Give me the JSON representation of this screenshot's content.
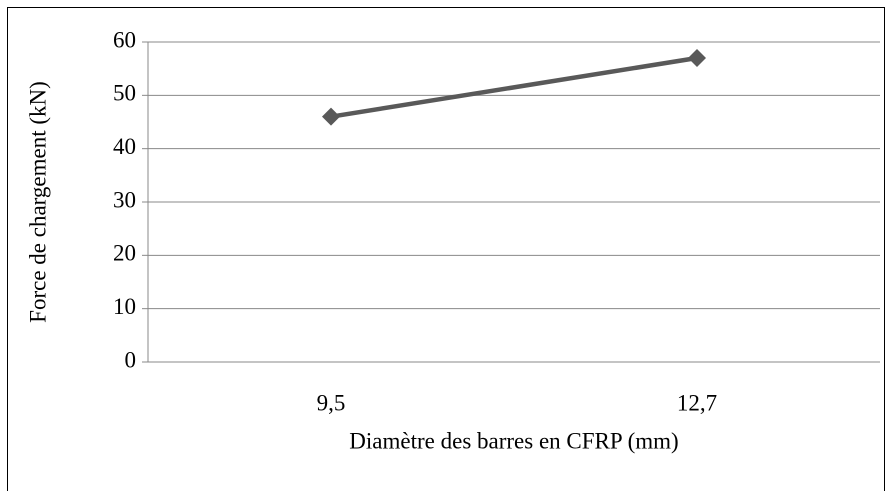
{
  "chart_data": {
    "type": "line",
    "categories": [
      "9,5",
      "12,7"
    ],
    "values": [
      46,
      57
    ],
    "color": "#595959",
    "ylim": [
      0,
      60
    ],
    "yticks": [
      0,
      10,
      20,
      30,
      40,
      50,
      60
    ],
    "grid": true,
    "xlabel": "Diamètre des barres en CFRP (mm)",
    "ylabel": "Force de chargement (kN)"
  }
}
